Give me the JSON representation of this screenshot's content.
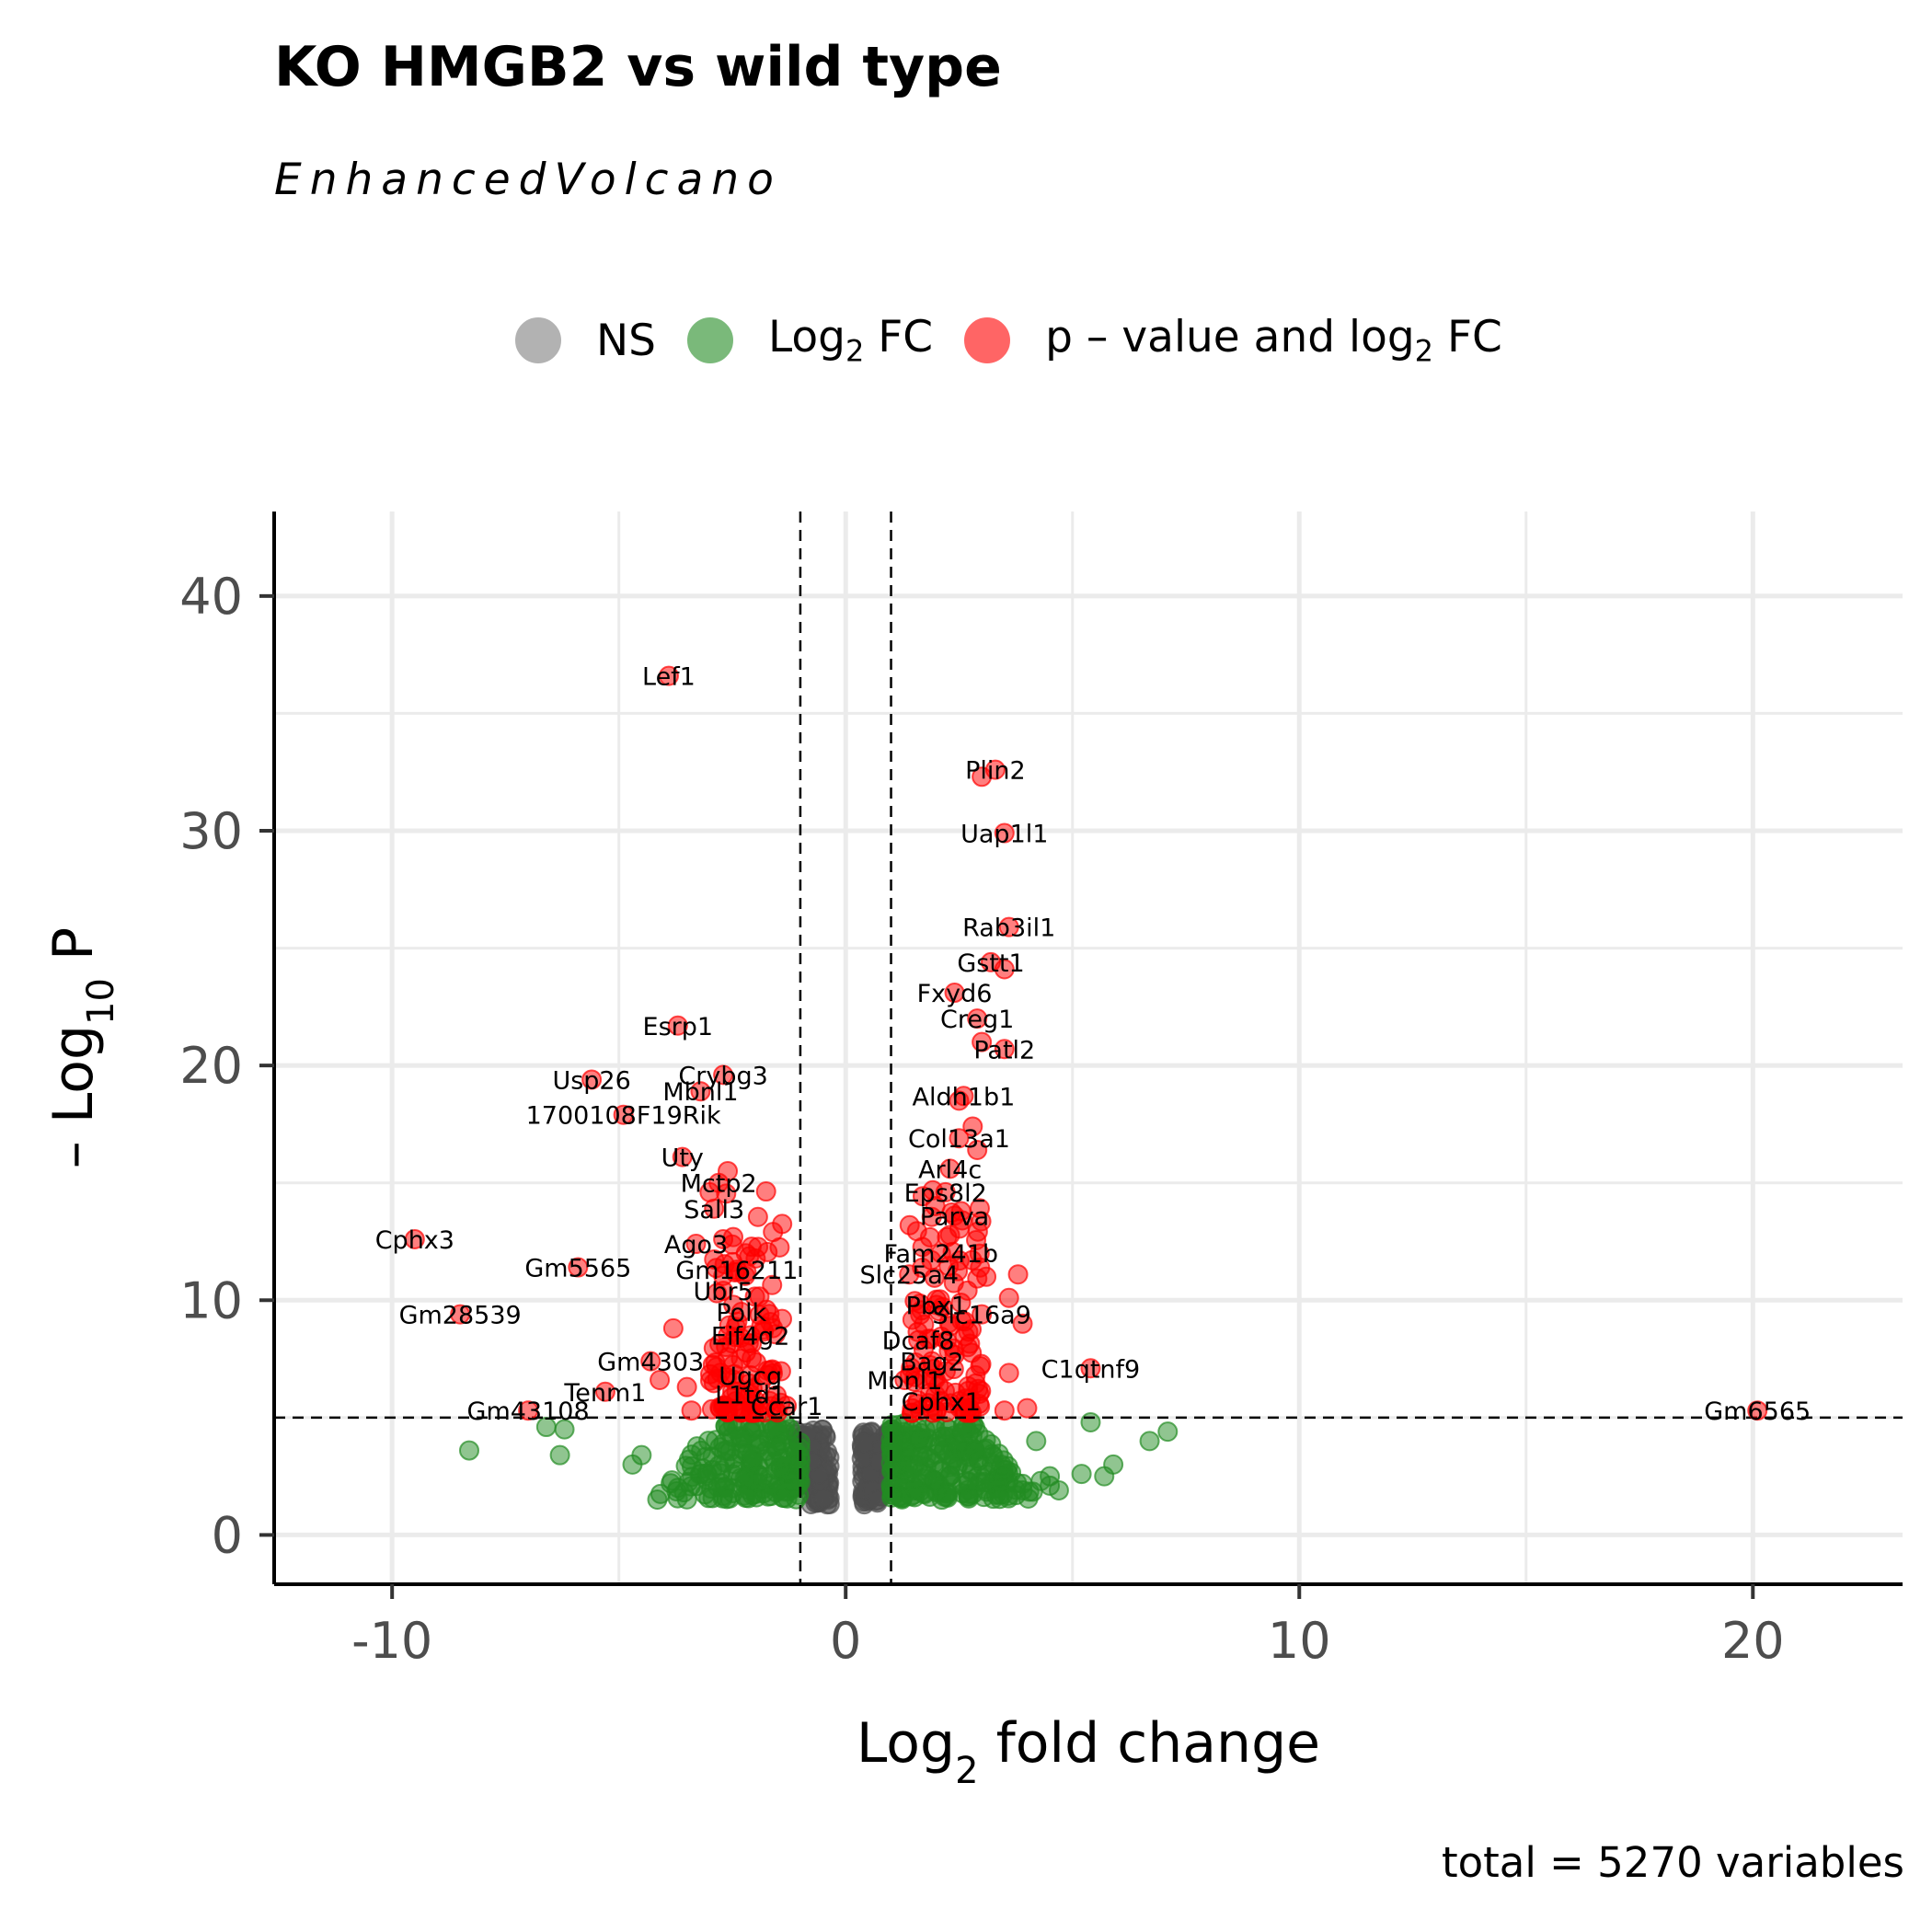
{
  "chart_data": {
    "type": "scatter",
    "title": "KO HMGB2 vs wild type",
    "subtitle": "EnhancedVolcano",
    "caption": "total = 5270 variables",
    "xlabel": "Log2 fold change",
    "ylabel": "– Log10 P",
    "xlim": [
      -12.6,
      23.3
    ],
    "ylim": [
      -2.1,
      43.6
    ],
    "x_ticks": [
      -10,
      0,
      10,
      20
    ],
    "x_tick_labels": [
      "-10",
      "0",
      "10",
      "20"
    ],
    "y_ticks": [
      0,
      10,
      20,
      30,
      40
    ],
    "y_tick_labels": [
      "0",
      "10",
      "20",
      "30",
      "40"
    ],
    "grid": true,
    "legend_position": "top",
    "thresholds": {
      "log2fc": [
        -1,
        1
      ],
      "neg_log10_p": 5
    },
    "colors": {
      "NS": "#4d4d4d",
      "Log2FC": "#228b22",
      "both": "#ff0000"
    },
    "legend": [
      {
        "key": "NS",
        "label": "NS",
        "color": "#7f7f7f"
      },
      {
        "key": "Log2FC",
        "label": "Log2 FC",
        "color": "#228b22"
      },
      {
        "key": "both",
        "label": "p – value and log2 FC",
        "color": "#ff0000"
      }
    ],
    "series": [
      {
        "name": "p – value and log2 FC",
        "points": [
          {
            "x": -3.9,
            "y": 36.6,
            "label": "Lef1"
          },
          {
            "x": 3.3,
            "y": 32.6,
            "label": "Plin2"
          },
          {
            "x": 3.5,
            "y": 29.9,
            "label": "Uap1l1"
          },
          {
            "x": 3.6,
            "y": 25.9,
            "label": "Rab3il1"
          },
          {
            "x": 3.2,
            "y": 24.4,
            "label": "Gstt1"
          },
          {
            "x": 2.4,
            "y": 23.1,
            "label": "Fxyd6"
          },
          {
            "x": 2.9,
            "y": 22.0,
            "label": "Creg1"
          },
          {
            "x": 3.5,
            "y": 20.7,
            "label": "Patl2"
          },
          {
            "x": -3.7,
            "y": 21.7,
            "label": "Esrp1"
          },
          {
            "x": -2.7,
            "y": 19.6,
            "label": "Crybg3"
          },
          {
            "x": -5.6,
            "y": 19.4,
            "label": "Usp26"
          },
          {
            "x": -3.2,
            "y": 18.9,
            "label": "Mbnl1"
          },
          {
            "x": -4.9,
            "y": 17.9,
            "label": "1700108F19Rik"
          },
          {
            "x": -3.6,
            "y": 16.1,
            "label": "Uty"
          },
          {
            "x": 2.6,
            "y": 18.7,
            "label": "Aldh1b1"
          },
          {
            "x": 2.5,
            "y": 16.9,
            "label": "Col13a1"
          },
          {
            "x": 2.3,
            "y": 15.6,
            "label": "Arl4c"
          },
          {
            "x": -2.8,
            "y": 15.0,
            "label": "Mctp2"
          },
          {
            "x": 2.2,
            "y": 14.6,
            "label": "Eps8l2"
          },
          {
            "x": -2.9,
            "y": 13.9,
            "label": "Sall3"
          },
          {
            "x": 2.4,
            "y": 13.6,
            "label": "Parva"
          },
          {
            "x": -9.5,
            "y": 12.6,
            "label": "Cphx3"
          },
          {
            "x": -3.3,
            "y": 12.4,
            "label": "Ago3"
          },
          {
            "x": 2.1,
            "y": 12.0,
            "label": "Fam241b"
          },
          {
            "x": -2.4,
            "y": 11.3,
            "label": "Gm16211"
          },
          {
            "x": 1.4,
            "y": 11.1,
            "label": "Slc25a4"
          },
          {
            "x": -5.9,
            "y": 11.4,
            "label": "Gm5565"
          },
          {
            "x": -2.7,
            "y": 10.4,
            "label": "Ubr5"
          },
          {
            "x": 2.0,
            "y": 9.8,
            "label": "Pbx1"
          },
          {
            "x": -8.5,
            "y": 9.4,
            "label": "Gm28539"
          },
          {
            "x": -2.3,
            "y": 9.5,
            "label": "Polk"
          },
          {
            "x": 3.0,
            "y": 9.4,
            "label": "Slc16a9"
          },
          {
            "x": -2.1,
            "y": 8.5,
            "label": "Eif4g2"
          },
          {
            "x": 1.6,
            "y": 8.3,
            "label": "Dcaf8"
          },
          {
            "x": -4.3,
            "y": 7.4,
            "label": "Gm4303"
          },
          {
            "x": 1.9,
            "y": 7.4,
            "label": "Bag2"
          },
          {
            "x": 5.4,
            "y": 7.1,
            "label": "C1qtnf9"
          },
          {
            "x": -2.1,
            "y": 6.8,
            "label": "Ugcg"
          },
          {
            "x": 1.3,
            "y": 6.6,
            "label": "Mbnl1"
          },
          {
            "x": -2.1,
            "y": 6.0,
            "label": "L1td1"
          },
          {
            "x": -5.3,
            "y": 6.1,
            "label": "Tenm1"
          },
          {
            "x": -1.3,
            "y": 5.5,
            "label": "Ccar1"
          },
          {
            "x": 2.1,
            "y": 5.7,
            "label": "Cphx1"
          },
          {
            "x": -7.0,
            "y": 5.3,
            "label": "Gm43108"
          },
          {
            "x": 20.1,
            "y": 5.3,
            "label": "Gm6565"
          },
          {
            "x": -3.8,
            "y": 8.8
          },
          {
            "x": -4.1,
            "y": 6.6
          },
          {
            "x": -3.5,
            "y": 6.3
          },
          {
            "x": -3.4,
            "y": 5.3
          },
          {
            "x": 3.6,
            "y": 6.9
          },
          {
            "x": 3.8,
            "y": 11.1
          },
          {
            "x": 3.9,
            "y": 9.0
          },
          {
            "x": 3.6,
            "y": 10.1
          },
          {
            "x": 3.1,
            "y": 11.0
          },
          {
            "x": 4.0,
            "y": 5.4
          },
          {
            "x": 3.5,
            "y": 5.3
          },
          {
            "x": 2.9,
            "y": 16.4
          },
          {
            "x": 2.8,
            "y": 17.4
          },
          {
            "x": 3.5,
            "y": 24.1
          },
          {
            "x": 3.0,
            "y": 21.0
          },
          {
            "x": 3.0,
            "y": 32.3
          },
          {
            "x": 2.5,
            "y": 18.5
          },
          {
            "x": -3.0,
            "y": 14.6
          },
          {
            "x": -2.6,
            "y": 15.5
          },
          {
            "x": -2.7,
            "y": 12.6
          },
          {
            "x": -2.2,
            "y": 12.0
          }
        ]
      }
    ],
    "cloud_note_removed": true
  }
}
